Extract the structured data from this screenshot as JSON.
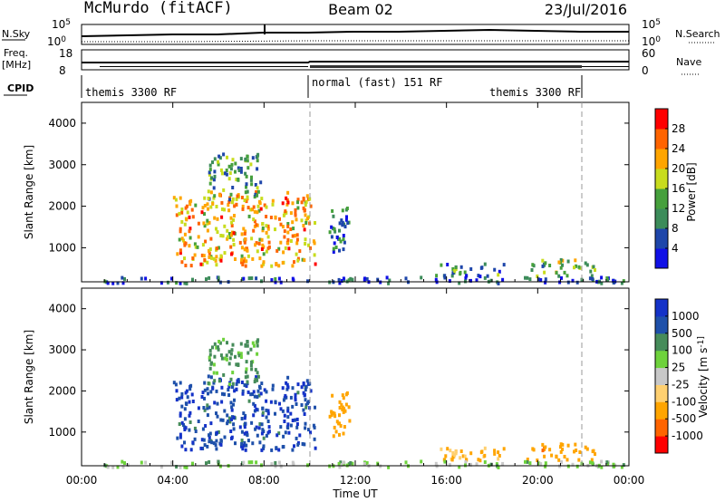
{
  "header": {
    "station": "McMurdo (fitACF)",
    "beam": "Beam 02",
    "date": "23/Jul/2016"
  },
  "top_panel": {
    "nsky_label": "N.Sky",
    "nsearch_label": "N.Search",
    "freq_label": "Freq.",
    "freq_unit": "[MHz]",
    "nave_label": "Nave",
    "cpid_label": "CPID",
    "left_ticks_noise": [
      "10^5",
      "10^0"
    ],
    "right_ticks_noise": [
      "10^5",
      "10^0"
    ],
    "left_ticks_freq": [
      "18",
      "8"
    ],
    "right_ticks_nave": [
      "60",
      "0"
    ],
    "cpid_segments": [
      {
        "label": "themis 3300 RF"
      },
      {
        "label": "normal (fast) 151 RF"
      },
      {
        "label": "themis 3300 RF"
      }
    ]
  },
  "x_axis": {
    "label": "Time UT",
    "ticks": [
      "00:00",
      "04:00",
      "08:00",
      "12:00",
      "16:00",
      "20:00",
      "00:00"
    ]
  },
  "colors": {
    "power_scale": [
      "#1010e6",
      "#1e46aa",
      "#3c8c5a",
      "#46a03c",
      "#c8dc1e",
      "#ffa500",
      "#ff6400",
      "#ff0000"
    ],
    "velocity_scale": [
      "#ff0000",
      "#ff6400",
      "#ffa500",
      "#ffd070",
      "#c8c8c8",
      "#6ed23c",
      "#468c5a",
      "#1e50aa",
      "#1432c8"
    ]
  },
  "chart_data": [
    {
      "type": "heatmap",
      "title": "Power",
      "ylabel": "Slant Range [km]",
      "xlabel": "Time UT",
      "xlim": [
        0,
        24
      ],
      "ylim": [
        180,
        4500
      ],
      "yticks": [
        "1000",
        "2000",
        "3000",
        "4000"
      ],
      "colorbar": {
        "label": "Power [dB]",
        "range": [
          0,
          32
        ],
        "ticks": [
          "4",
          "8",
          "12",
          "16",
          "20",
          "24",
          "28"
        ]
      },
      "regions": [
        {
          "t0": 4.0,
          "t1": 10.2,
          "r0": 600,
          "r1": 2400,
          "level": 22
        },
        {
          "t0": 5.5,
          "t1": 7.8,
          "r0": 2200,
          "r1": 3300,
          "level": 12
        },
        {
          "t0": 10.8,
          "t1": 11.7,
          "r0": 900,
          "r1": 2000,
          "level": 8
        },
        {
          "t0": 15.5,
          "t1": 18.5,
          "r0": 350,
          "r1": 650,
          "level": 10
        },
        {
          "t0": 19.5,
          "t1": 22.5,
          "r0": 350,
          "r1": 750,
          "level": 14
        },
        {
          "t0": 0.5,
          "t1": 24.0,
          "r0": 180,
          "r1": 330,
          "level": 6
        }
      ]
    },
    {
      "type": "heatmap",
      "title": "Velocity",
      "ylabel": "Slant Range [km]",
      "xlabel": "Time UT",
      "xlim": [
        0,
        24
      ],
      "ylim": [
        180,
        4500
      ],
      "yticks": [
        "1000",
        "2000",
        "3000",
        "4000"
      ],
      "colorbar": {
        "label": "Velocity [m s^-1]",
        "ticks": [
          "1000",
          "500",
          "100",
          "25",
          "-25",
          "-100",
          "-500",
          "-1000"
        ]
      },
      "regions": [
        {
          "t0": 4.0,
          "t1": 10.2,
          "r0": 600,
          "r1": 2400,
          "velocity": 900
        },
        {
          "t0": 5.5,
          "t1": 7.8,
          "r0": 2200,
          "r1": 3300,
          "velocity": 150
        },
        {
          "t0": 10.8,
          "t1": 11.7,
          "r0": 900,
          "r1": 2000,
          "velocity": -300
        },
        {
          "t0": 15.5,
          "t1": 18.5,
          "r0": 350,
          "r1": 650,
          "velocity": -100
        },
        {
          "t0": 19.5,
          "t1": 22.5,
          "r0": 350,
          "r1": 750,
          "velocity": -350
        },
        {
          "t0": 0.5,
          "t1": 24.0,
          "r0": 180,
          "r1": 330,
          "velocity": 50
        }
      ]
    }
  ]
}
